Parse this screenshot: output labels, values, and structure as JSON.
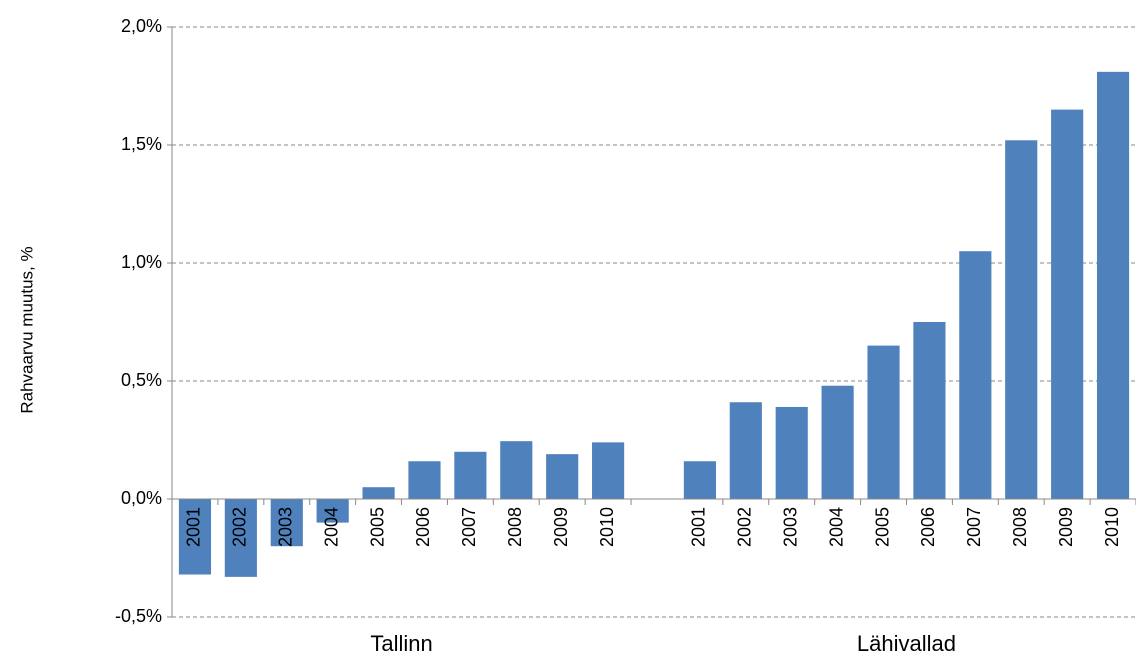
{
  "chart_data": {
    "type": "bar",
    "ylabel": "Rahvaarvu muutus, %",
    "color": "#4f81bd",
    "grid": true,
    "ylim": [
      -0.5,
      2.0
    ],
    "yticks": [
      {
        "value": -0.5,
        "label": "-0,5%"
      },
      {
        "value": 0,
        "label": "0,0%"
      },
      {
        "value": 0.5,
        "label": "0,5%"
      },
      {
        "value": 1.0,
        "label": "1,0%"
      },
      {
        "value": 1.5,
        "label": "1,5%"
      },
      {
        "value": 2.0,
        "label": "2,0%"
      }
    ],
    "groups": [
      {
        "name": "Tallinn",
        "categories": [
          "2001",
          "2002",
          "2003",
          "2004",
          "2005",
          "2006",
          "2007",
          "2008",
          "2009",
          "2010"
        ],
        "values": [
          -0.32,
          -0.33,
          -0.2,
          -0.1,
          0.05,
          0.16,
          0.2,
          0.245,
          0.19,
          0.24
        ]
      },
      {
        "name": "Lähivallad",
        "categories": [
          "2001",
          "2002",
          "2003",
          "2004",
          "2005",
          "2006",
          "2007",
          "2008",
          "2009",
          "2010"
        ],
        "values": [
          0.16,
          0.41,
          0.39,
          0.48,
          0.65,
          0.75,
          1.05,
          1.52,
          1.65,
          1.81
        ]
      }
    ]
  }
}
